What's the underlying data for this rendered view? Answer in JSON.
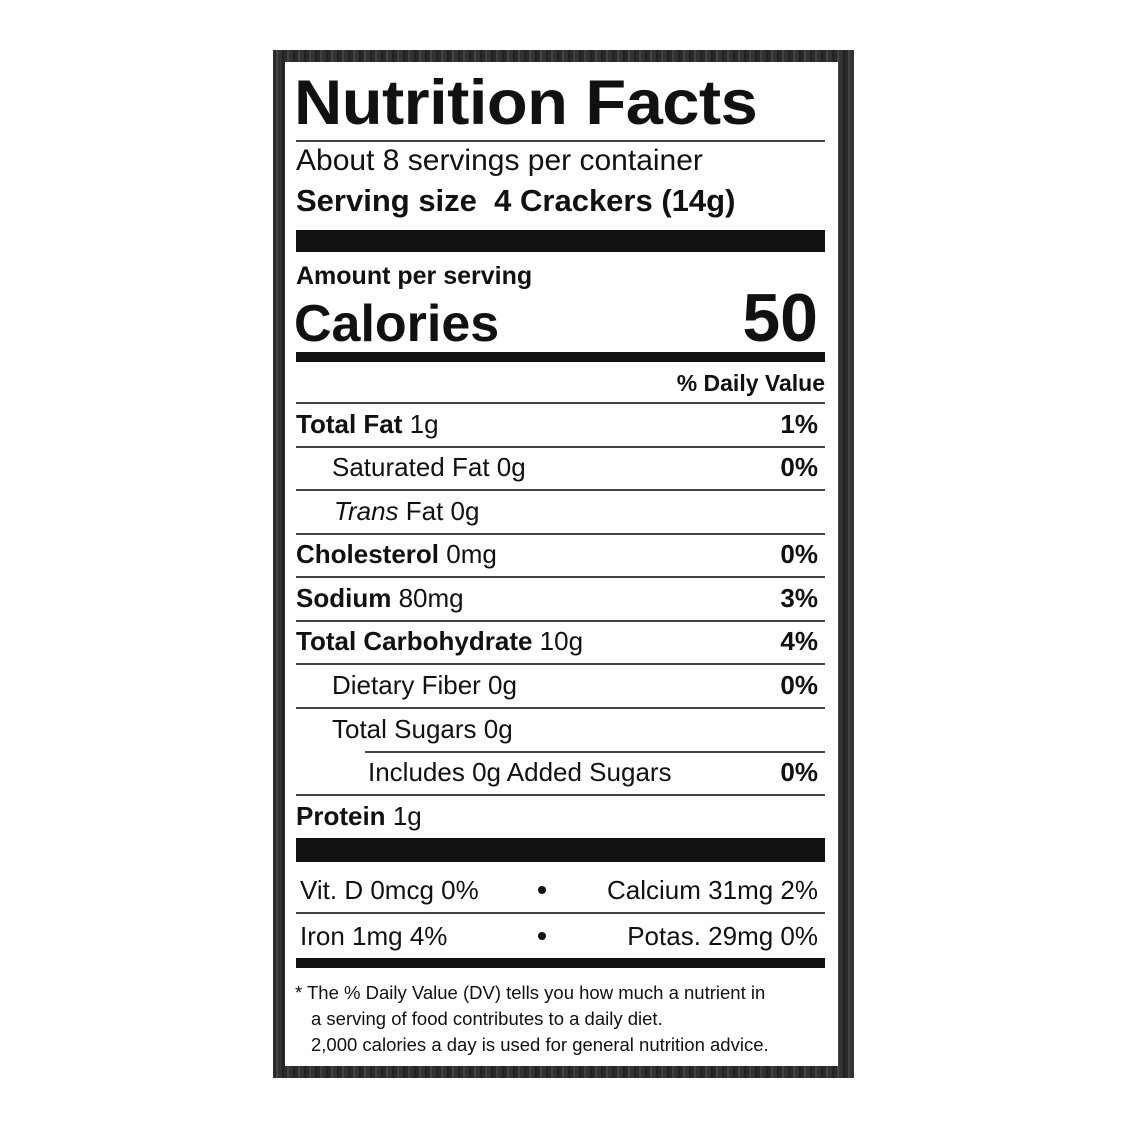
{
  "title": "Nutrition Facts",
  "servings": "About 8 servings per container",
  "serving_size": {
    "label": "Serving size",
    "value": "4 Crackers (14g)"
  },
  "amount_per_serving": "Amount per serving",
  "calories": {
    "label": "Calories",
    "value": "50"
  },
  "daily_value_header": "% Daily Value",
  "rows": [
    {
      "name": "Total Fat",
      "amount": "1g",
      "dv": "1%"
    },
    {
      "name": "Saturated Fat 0g",
      "dv": "0%"
    },
    {
      "name_italic": "Trans",
      "name": "Fat 0g"
    },
    {
      "name": "Cholesterol",
      "amount": "0mg",
      "dv": "0%"
    },
    {
      "name": "Sodium",
      "amount": "80mg",
      "dv": "3%"
    },
    {
      "name": "Total Carbohydrate",
      "amount": "10g",
      "dv": "4%"
    },
    {
      "name": "Dietary Fiber 0g",
      "dv": "0%"
    },
    {
      "name": "Total Sugars 0g"
    },
    {
      "name": "Includes 0g Added Sugars",
      "dv": "0%"
    },
    {
      "name": "Protein",
      "amount": "1g"
    }
  ],
  "micronutrients": [
    [
      "Vit. D 0mcg 0%",
      "Calcium 31mg 2%"
    ],
    [
      "Iron 1mg 4%",
      "Potas. 29mg 0%"
    ]
  ],
  "footnote": [
    "* The % Daily Value (DV) tells you how much a nutrient in",
    "a serving of food contributes to a daily diet.",
    "2,000 calories a day is used for general nutrition advice."
  ]
}
